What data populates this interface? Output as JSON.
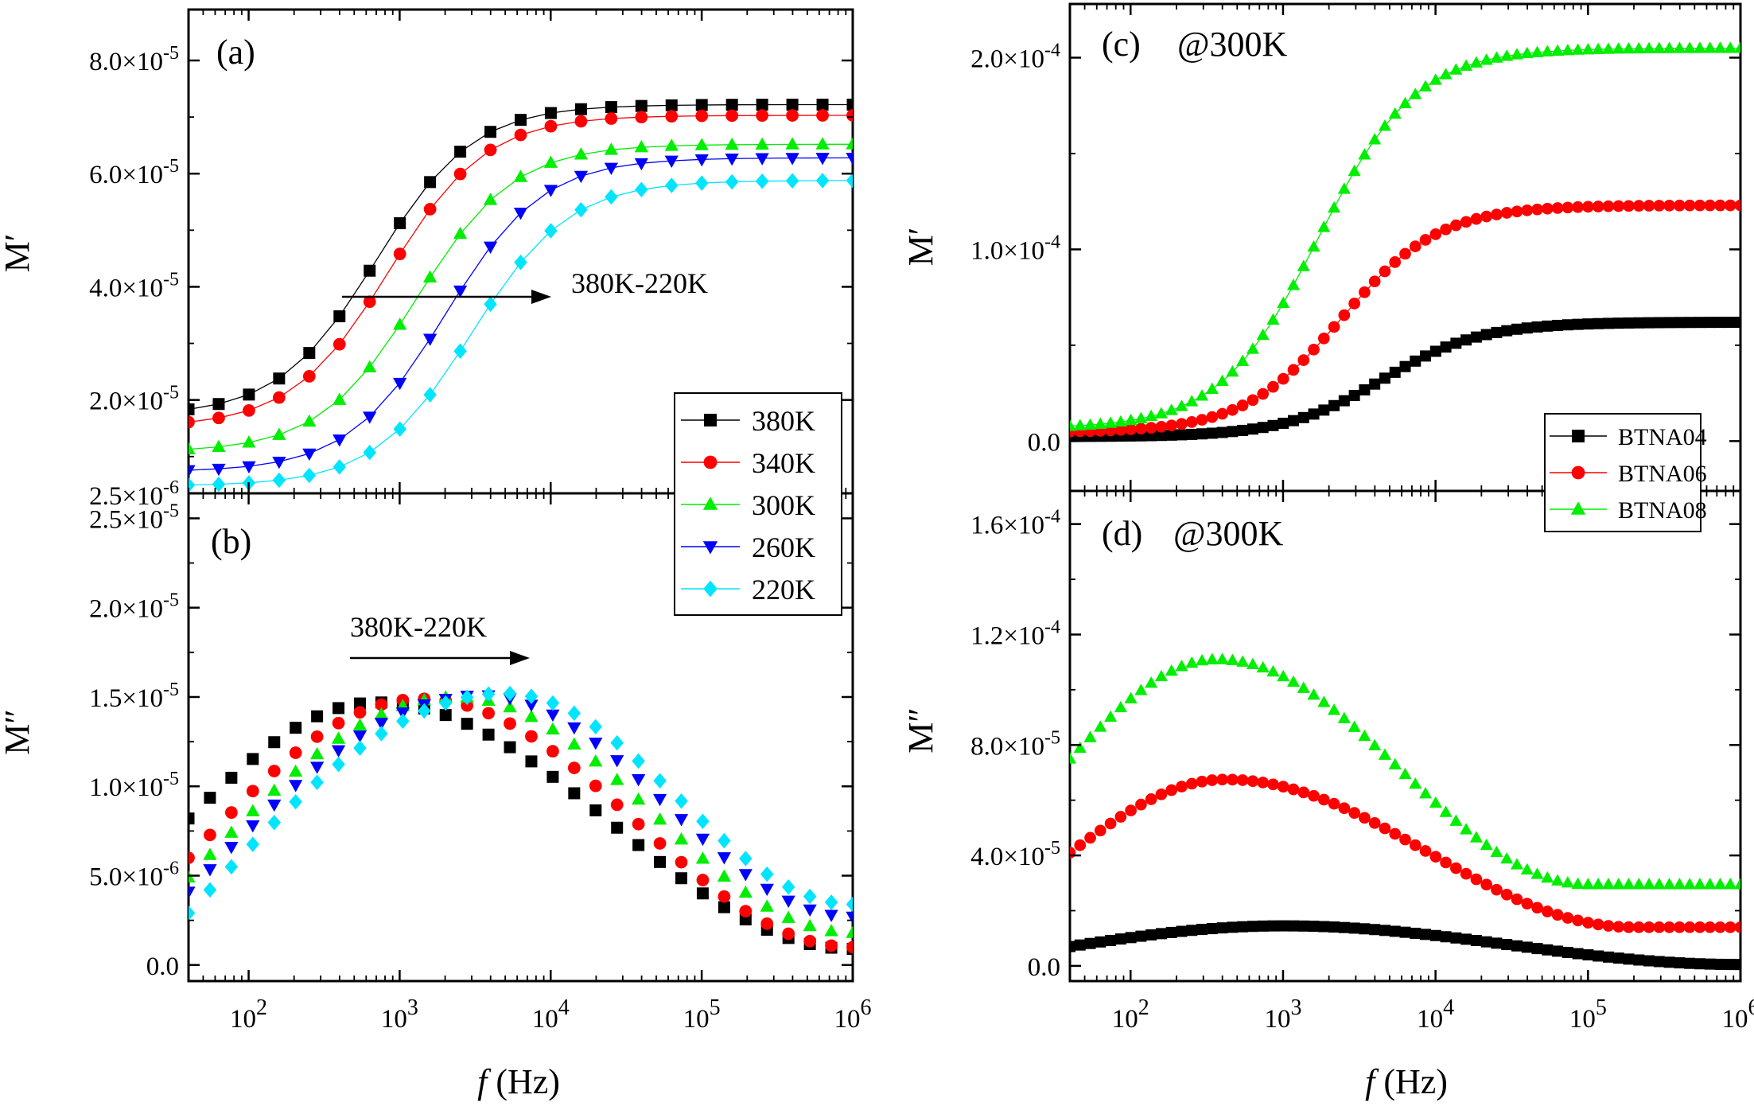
{
  "chart_data": [
    {
      "type": "scatter",
      "panel": "(a)",
      "xlabel": "f (Hz)",
      "ylabel": "M′",
      "xscale": "log",
      "xlim": [
        40,
        1000000
      ],
      "ylim": [
        3.5e-06,
        8.9e-05
      ],
      "y_tick_values": [
        2e-05,
        4e-05,
        6e-05,
        8e-05
      ],
      "y_tick_labels": [
        "2.0×10^-5",
        "4.0×10^-5",
        "6.0×10^-5",
        "8.0×10^-5"
      ],
      "y_tick_bottom_label": "2.5×10^-6",
      "annotation": "380K-220K",
      "series": [
        {
          "name": "380K",
          "marker": "square",
          "color": "#000000",
          "points_per_decade": 5,
          "x_min": 40,
          "x_max": 1000000,
          "y_low": 1.72e-05,
          "y_high": 7.22e-05,
          "f_center": 700
        },
        {
          "name": "340K",
          "marker": "circle",
          "color": "#ff0000",
          "points_per_decade": 5,
          "x_min": 40,
          "x_max": 1000000,
          "y_low": 1.52e-05,
          "y_high": 7.03e-05,
          "f_center": 850
        },
        {
          "name": "300K",
          "marker": "triangle-up",
          "color": "#00ee00",
          "points_per_decade": 5,
          "x_min": 40,
          "x_max": 1000000,
          "y_low": 1.08e-05,
          "y_high": 6.52e-05,
          "f_center": 1300
        },
        {
          "name": "260K",
          "marker": "triangle-down",
          "color": "#0000ff",
          "points_per_decade": 5,
          "x_min": 40,
          "x_max": 1000000,
          "y_low": 7.3e-06,
          "y_high": 6.28e-05,
          "f_center": 2000
        },
        {
          "name": "220K",
          "marker": "diamond",
          "color": "#00e5ff",
          "points_per_decade": 5,
          "x_min": 40,
          "x_max": 1000000,
          "y_low": 4.8e-06,
          "y_high": 5.88e-05,
          "f_center": 3000
        }
      ]
    },
    {
      "type": "scatter",
      "panel": "(b)",
      "xlabel": "f (Hz)",
      "ylabel": "M″",
      "xscale": "log",
      "xlim": [
        40,
        1000000
      ],
      "ylim": [
        -9e-07,
        2.64e-05
      ],
      "y_tick_values": [
        0,
        5e-06,
        1e-05,
        1.5e-05,
        2e-05,
        2.5e-05
      ],
      "y_tick_labels": [
        "0.0",
        "5.0×10^-6",
        "1.0×10^-5",
        "1.5×10^-5",
        "2.0×10^-5",
        "2.5×10^-5"
      ],
      "annotation": "380K-220K",
      "series": [
        {
          "name": "380K",
          "marker": "square",
          "color": "#000000",
          "points_per_decade": 7,
          "x_min": 40,
          "x_max": 1000000,
          "y_peak": 1.47e-05,
          "f_peak": 700,
          "y_left": 8.2e-06,
          "y_right": 9e-07
        },
        {
          "name": "340K",
          "marker": "circle",
          "color": "#ff0000",
          "points_per_decade": 7,
          "x_min": 40,
          "x_max": 1000000,
          "y_peak": 1.49e-05,
          "f_peak": 1400,
          "y_left": 6e-06,
          "y_right": 1e-06
        },
        {
          "name": "300K",
          "marker": "triangle-up",
          "color": "#00ee00",
          "points_per_decade": 7,
          "x_min": 40,
          "x_max": 1000000,
          "y_peak": 1.5e-05,
          "f_peak": 2400,
          "y_left": 4.9e-06,
          "y_right": 1.8e-06
        },
        {
          "name": "260K",
          "marker": "triangle-down",
          "color": "#0000ff",
          "points_per_decade": 7,
          "x_min": 40,
          "x_max": 1000000,
          "y_peak": 1.51e-05,
          "f_peak": 3500,
          "y_left": 4.1e-06,
          "y_right": 2.7e-06
        },
        {
          "name": "220K",
          "marker": "diamond",
          "color": "#00e5ff",
          "points_per_decade": 7,
          "x_min": 40,
          "x_max": 1000000,
          "y_peak": 1.52e-05,
          "f_peak": 5000,
          "y_left": 2.9e-06,
          "y_right": 3.4e-06
        }
      ]
    },
    {
      "type": "scatter",
      "panel": "(c)",
      "annotation": "@300K",
      "xlabel": "f (Hz)",
      "ylabel": "M′",
      "xscale": "log",
      "xlim": [
        40,
        1000000
      ],
      "ylim": [
        -2.6e-05,
        0.000228
      ],
      "y_tick_values": [
        0,
        0.0001,
        0.0002
      ],
      "y_tick_labels": [
        "0.0",
        "1.0×10^-4",
        "2.0×10^-4"
      ],
      "series": [
        {
          "name": "BTNA04",
          "marker": "square",
          "color": "#000000",
          "points_per_decade": 15,
          "x_min": 40,
          "x_max": 1000000,
          "y_low": 2.3e-06,
          "y_high": 6.2e-05,
          "f_center": 4500
        },
        {
          "name": "BTNA06",
          "marker": "circle",
          "color": "#ff0000",
          "points_per_decade": 15,
          "x_min": 40,
          "x_max": 1000000,
          "y_low": 4.5e-06,
          "y_high": 0.000123,
          "f_center": 2400
        },
        {
          "name": "BTNA08",
          "marker": "triangle-up",
          "color": "#00ee00",
          "points_per_decade": 15,
          "x_min": 40,
          "x_max": 1000000,
          "y_low": 6.5e-06,
          "y_high": 0.000205,
          "f_center": 1700
        }
      ]
    },
    {
      "type": "scatter",
      "panel": "(d)",
      "annotation": "@300K",
      "xlabel": "f (Hz)",
      "ylabel": "M″",
      "xscale": "log",
      "xlim": [
        40,
        1000000
      ],
      "ylim": [
        -5.5e-06,
        0.000172
      ],
      "y_tick_values": [
        0,
        4e-05,
        8e-05,
        0.00012,
        0.00016
      ],
      "y_tick_labels": [
        "0.0",
        "4.0×10^-5",
        "8.0×10^-5",
        "1.2×10^-4",
        "1.6×10^-4"
      ],
      "series": [
        {
          "name": "BTNA04",
          "marker": "square",
          "color": "#000000",
          "points_per_decade": 15,
          "x_min": 40,
          "x_max": 1000000,
          "y_peak": 1.45e-05,
          "f_peak": 1000,
          "y_left": 7e-06,
          "y_right": 5e-07,
          "flat_after": 0
        },
        {
          "name": "BTNA06",
          "marker": "circle",
          "color": "#ff0000",
          "points_per_decade": 15,
          "x_min": 40,
          "x_max": 1000000,
          "y_peak": 6.75e-05,
          "f_peak": 420,
          "y_left": 4.1e-05,
          "y_right": 1.4e-05,
          "flat_after": 200000
        },
        {
          "name": "BTNA08",
          "marker": "triangle-up",
          "color": "#00ee00",
          "points_per_decade": 15,
          "x_min": 40,
          "x_max": 1000000,
          "y_peak": 0.000111,
          "f_peak": 370,
          "y_left": 7.5e-05,
          "y_right": 2.95e-05,
          "flat_after": 100000
        }
      ]
    }
  ],
  "x_tick_labels": [
    "10^2",
    "10^3",
    "10^4",
    "10^5",
    "10^6"
  ]
}
